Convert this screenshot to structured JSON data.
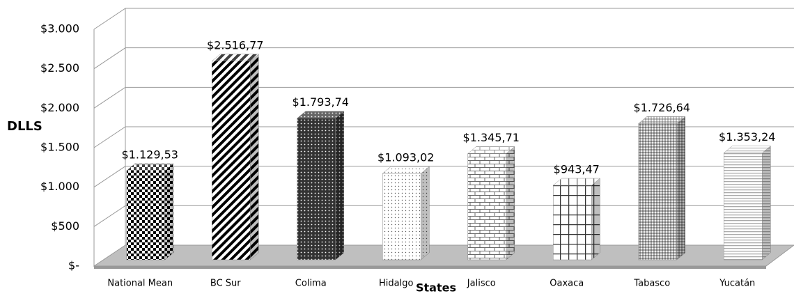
{
  "chart_data": {
    "type": "bar3d",
    "y_label": "DLLS",
    "x_label": "States",
    "categories": [
      "National Mean",
      "BC Sur",
      "Colima",
      "Hidalgo",
      "Jalisco",
      "Oaxaca",
      "Tabasco",
      "Yucatán"
    ],
    "values": [
      1129.53,
      2516.77,
      1793.74,
      1093.02,
      1345.71,
      943.47,
      1726.64,
      1353.24
    ],
    "value_labels": [
      "$1.129,53",
      "$2.516,77",
      "$1.793,74",
      "$1.093,02",
      "$1.345,71",
      "$943,47",
      "$1.726,64",
      "$1.353,24"
    ],
    "ylim": [
      0,
      3000
    ],
    "yticks": [
      {
        "value": 0,
        "label": "$-"
      },
      {
        "value": 500,
        "label": "$500"
      },
      {
        "value": 1000,
        "label": "$1.000"
      },
      {
        "value": 1500,
        "label": "$1.500"
      },
      {
        "value": 2000,
        "label": "$2.000"
      },
      {
        "value": 2500,
        "label": "$2.500"
      },
      {
        "value": 3000,
        "label": "$3.000"
      }
    ],
    "grid": true
  }
}
